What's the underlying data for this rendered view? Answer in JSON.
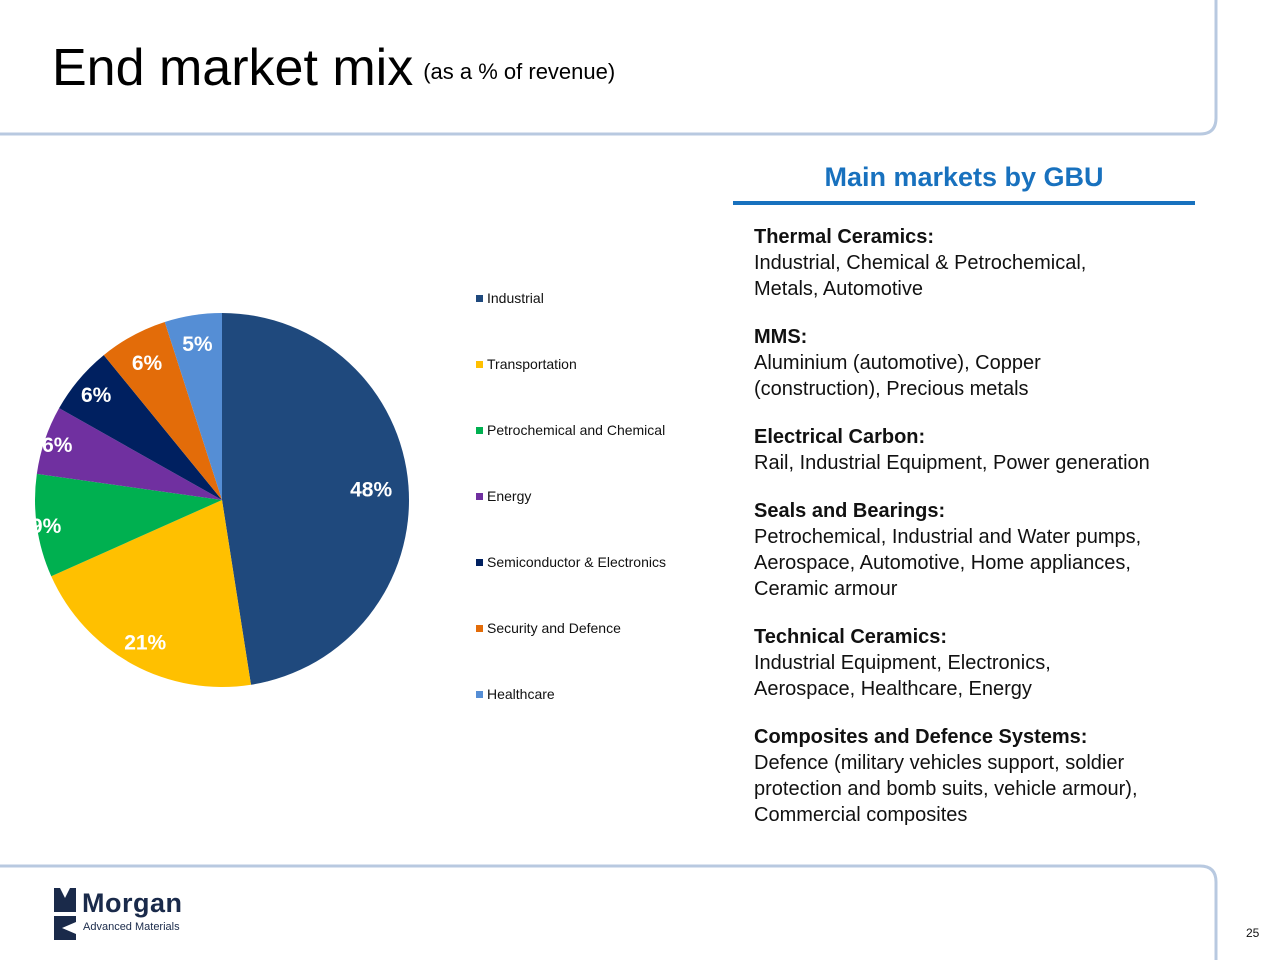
{
  "slide": {
    "title": "End market mix",
    "subtitle": "(as a % of revenue)",
    "page_number": "25"
  },
  "chart_data": {
    "type": "pie",
    "categories": [
      "Industrial",
      "Transportation",
      "Petrochemical and Chemical",
      "Energy",
      "Semiconductor & Electronics",
      "Security and Defence",
      "Healthcare"
    ],
    "values": [
      48,
      21,
      9,
      6,
      6,
      6,
      5
    ],
    "labels": [
      "48%",
      "21%",
      "9%",
      "6%",
      "6%",
      "6%",
      "5%"
    ],
    "colors": [
      "#1f497d",
      "#ffc000",
      "#00b050",
      "#7030a0",
      "#002060",
      "#e36c09",
      "#558ed5"
    ],
    "legend_position": "right",
    "start_angle": "12 o'clock, clockwise"
  },
  "gbu": {
    "heading": "Main markets by GBU",
    "items": [
      {
        "name": "Thermal Ceramics:",
        "lines": [
          "Industrial, Chemical & Petrochemical,",
          "Metals, Automotive"
        ]
      },
      {
        "name": "MMS:",
        "lines": [
          "Aluminium (automotive), Copper",
          "(construction), Precious metals"
        ]
      },
      {
        "name": "Electrical Carbon:",
        "lines": [
          "Rail, Industrial Equipment, Power generation"
        ]
      },
      {
        "name": "Seals and Bearings:",
        "lines": [
          "Petrochemical, Industrial and Water pumps,",
          "Aerospace, Automotive, Home appliances,",
          "Ceramic armour"
        ]
      },
      {
        "name": "Technical Ceramics:",
        "lines": [
          "Industrial Equipment, Electronics,",
          "Aerospace, Healthcare, Energy"
        ]
      },
      {
        "name": "Composites and Defence Systems:",
        "lines": [
          "Defence (military vehicles support, soldier",
          "protection and bomb suits, vehicle armour),",
          "Commercial composites"
        ]
      }
    ]
  },
  "logo": {
    "name": "Morgan",
    "tagline": "Advanced Materials"
  },
  "theme": {
    "accent": "#1871be",
    "frame": "#b8c9e0"
  }
}
